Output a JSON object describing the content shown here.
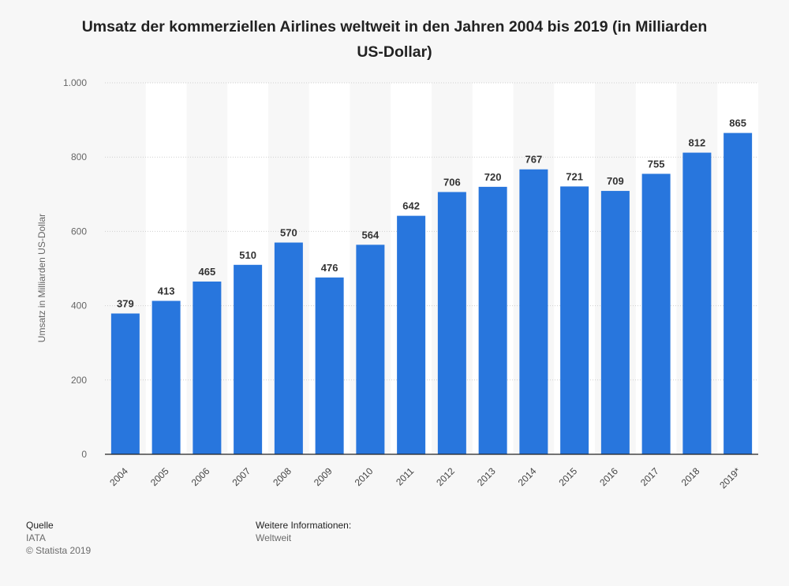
{
  "chart_data": {
    "type": "bar",
    "title": "Umsatz der kommerziellen Airlines weltweit in den Jahren 2004 bis 2019 (in Milliarden US-Dollar)",
    "xlabel": "",
    "ylabel": "Umsatz in Milliarden US-Dollar",
    "ylim": [
      0,
      1000
    ],
    "yticks": [
      0,
      200,
      400,
      600,
      800,
      1000
    ],
    "ytick_labels": [
      "0",
      "200",
      "400",
      "600",
      "800",
      "1.000"
    ],
    "categories": [
      "2004",
      "2005",
      "2006",
      "2007",
      "2008",
      "2009",
      "2010",
      "2011",
      "2012",
      "2013",
      "2014",
      "2015",
      "2016",
      "2017",
      "2018",
      "2019*"
    ],
    "values": [
      379,
      413,
      465,
      510,
      570,
      476,
      564,
      642,
      706,
      720,
      767,
      721,
      709,
      755,
      812,
      865
    ],
    "bar_color": "#2876dd",
    "grid": true
  },
  "footer": {
    "source_heading": "Quelle",
    "source_name": "IATA",
    "copyright": "© Statista 2019",
    "info_heading": "Weitere Informationen:",
    "info_value": "Weltweit"
  }
}
